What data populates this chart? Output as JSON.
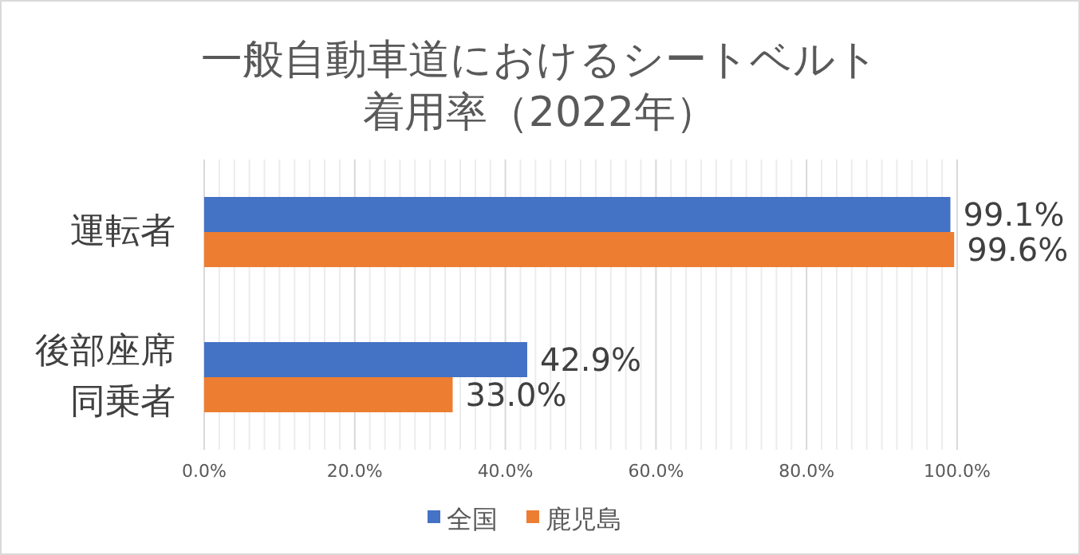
{
  "chart_data": {
    "type": "bar",
    "orientation": "horizontal",
    "title": "一般自動車道におけるシートベルト着用率（2022年）",
    "categories": [
      "運転者",
      "後部座席同乗者"
    ],
    "series": [
      {
        "name": "全国",
        "color": "#4472c4",
        "values": [
          99.1,
          42.9
        ],
        "value_labels": [
          "99.1%",
          "42.9%"
        ]
      },
      {
        "name": "鹿児島",
        "color": "#ed7d31",
        "values": [
          99.6,
          33.0
        ],
        "value_labels": [
          "99.6%",
          "33.0%"
        ]
      }
    ],
    "xlim": [
      0,
      100
    ],
    "xticks": [
      {
        "value": 0,
        "label": "0.0%"
      },
      {
        "value": 2,
        "label": null
      },
      {
        "value": 4,
        "label": null
      },
      {
        "value": 6,
        "label": null
      },
      {
        "value": 8,
        "label": null
      },
      {
        "value": 10,
        "label": null
      },
      {
        "value": 12,
        "label": null
      },
      {
        "value": 14,
        "label": null
      },
      {
        "value": 16,
        "label": null
      },
      {
        "value": 18,
        "label": null
      },
      {
        "value": 20,
        "label": "20.0%"
      },
      {
        "value": 22,
        "label": null
      },
      {
        "value": 24,
        "label": null
      },
      {
        "value": 26,
        "label": null
      },
      {
        "value": 28,
        "label": null
      },
      {
        "value": 30,
        "label": null
      },
      {
        "value": 32,
        "label": null
      },
      {
        "value": 34,
        "label": null
      },
      {
        "value": 36,
        "label": null
      },
      {
        "value": 38,
        "label": null
      },
      {
        "value": 40,
        "label": "40.0%"
      },
      {
        "value": 42,
        "label": null
      },
      {
        "value": 44,
        "label": null
      },
      {
        "value": 46,
        "label": null
      },
      {
        "value": 48,
        "label": null
      },
      {
        "value": 50,
        "label": null
      },
      {
        "value": 52,
        "label": null
      },
      {
        "value": 54,
        "label": null
      },
      {
        "value": 56,
        "label": null
      },
      {
        "value": 58,
        "label": null
      },
      {
        "value": 60,
        "label": "60.0%"
      },
      {
        "value": 62,
        "label": null
      },
      {
        "value": 64,
        "label": null
      },
      {
        "value": 66,
        "label": null
      },
      {
        "value": 68,
        "label": null
      },
      {
        "value": 70,
        "label": null
      },
      {
        "value": 72,
        "label": null
      },
      {
        "value": 74,
        "label": null
      },
      {
        "value": 76,
        "label": null
      },
      {
        "value": 78,
        "label": null
      },
      {
        "value": 80,
        "label": "80.0%"
      },
      {
        "value": 82,
        "label": null
      },
      {
        "value": 84,
        "label": null
      },
      {
        "value": 86,
        "label": null
      },
      {
        "value": 88,
        "label": null
      },
      {
        "value": 90,
        "label": null
      },
      {
        "value": 92,
        "label": null
      },
      {
        "value": 94,
        "label": null
      },
      {
        "value": 96,
        "label": null
      },
      {
        "value": 98,
        "label": null
      },
      {
        "value": 100,
        "label": "100.0%"
      }
    ],
    "grid": "x",
    "legend": "bottom"
  }
}
